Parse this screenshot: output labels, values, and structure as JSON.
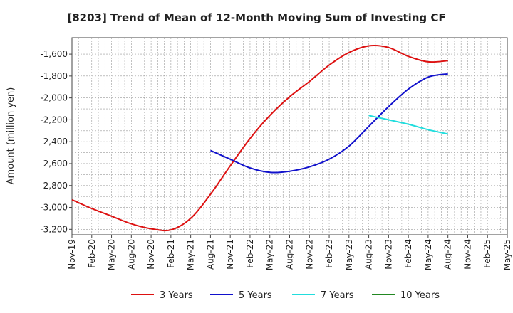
{
  "title": "[8203]  Trend of Mean of 12-Month Moving Sum of Investing CF",
  "chart_data": {
    "type": "line",
    "title": "[8203]  Trend of Mean of 12-Month Moving Sum of Investing CF",
    "ylabel": "Amount (million yen)",
    "xlabel": "",
    "ylim": [
      -3250,
      -1450
    ],
    "yticks": [
      -1600,
      -1800,
      -2000,
      -2200,
      -2400,
      -2600,
      -2800,
      -3000,
      -3200
    ],
    "ytick_labels": [
      "-1,600",
      "-1,800",
      "-2,000",
      "-2,200",
      "-2,400",
      "-2,600",
      "-2,800",
      "-3,000",
      "-3,200"
    ],
    "xlim": [
      "2019-11",
      "2025-05"
    ],
    "xtick_labels": [
      "Nov-19",
      "Feb-20",
      "May-20",
      "Aug-20",
      "Nov-20",
      "Feb-21",
      "May-21",
      "Aug-21",
      "Nov-21",
      "Feb-22",
      "May-22",
      "Aug-22",
      "Nov-22",
      "Feb-23",
      "May-23",
      "Aug-23",
      "Nov-23",
      "Feb-24",
      "May-24",
      "Aug-24",
      "Nov-24",
      "Feb-25",
      "May-25"
    ],
    "grid": true,
    "legend_position": "bottom",
    "series": [
      {
        "name": "3 Years",
        "color": "#dd1111",
        "points": [
          [
            "2019-11",
            -2930
          ],
          [
            "2020-02",
            -3010
          ],
          [
            "2020-05",
            -3080
          ],
          [
            "2020-08",
            -3150
          ],
          [
            "2020-11",
            -3195
          ],
          [
            "2021-02",
            -3205
          ],
          [
            "2021-05",
            -3100
          ],
          [
            "2021-08",
            -2880
          ],
          [
            "2021-11",
            -2620
          ],
          [
            "2022-02",
            -2370
          ],
          [
            "2022-05",
            -2160
          ],
          [
            "2022-08",
            -1990
          ],
          [
            "2022-11",
            -1850
          ],
          [
            "2023-02",
            -1700
          ],
          [
            "2023-05",
            -1585
          ],
          [
            "2023-08",
            -1525
          ],
          [
            "2023-11",
            -1540
          ],
          [
            "2024-02",
            -1620
          ],
          [
            "2024-05",
            -1670
          ],
          [
            "2024-08",
            -1660
          ]
        ]
      },
      {
        "name": "5 Years",
        "color": "#1111cc",
        "points": [
          [
            "2021-08",
            -2480
          ],
          [
            "2021-11",
            -2560
          ],
          [
            "2022-02",
            -2640
          ],
          [
            "2022-05",
            -2680
          ],
          [
            "2022-08",
            -2670
          ],
          [
            "2022-11",
            -2630
          ],
          [
            "2023-02",
            -2560
          ],
          [
            "2023-05",
            -2440
          ],
          [
            "2023-08",
            -2260
          ],
          [
            "2023-11",
            -2080
          ],
          [
            "2024-02",
            -1920
          ],
          [
            "2024-05",
            -1810
          ],
          [
            "2024-08",
            -1780
          ]
        ]
      },
      {
        "name": "7 Years",
        "color": "#22dddd",
        "points": [
          [
            "2023-08",
            -2160
          ],
          [
            "2023-11",
            -2200
          ],
          [
            "2024-02",
            -2240
          ],
          [
            "2024-05",
            -2290
          ],
          [
            "2024-08",
            -2330
          ]
        ]
      },
      {
        "name": "10 Years",
        "color": "#228822",
        "points": []
      }
    ]
  }
}
